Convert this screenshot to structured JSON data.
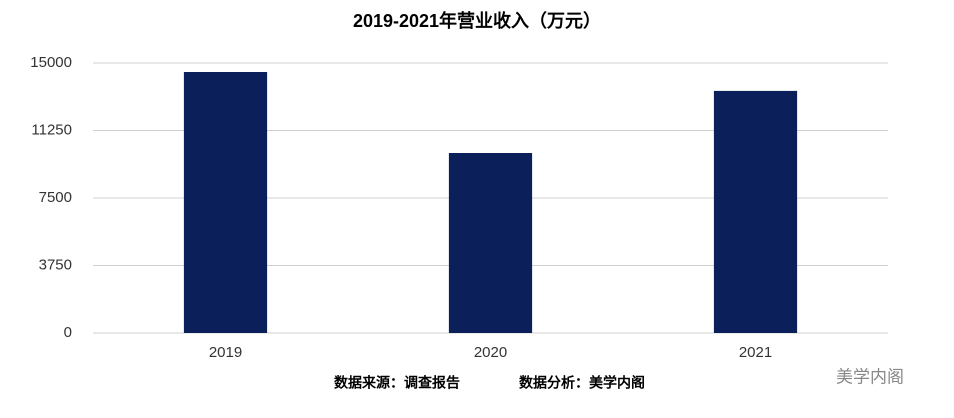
{
  "chart_data": {
    "type": "bar",
    "title": "2019-2021年营业收入（万元）",
    "categories": [
      "2019",
      "2020",
      "2021"
    ],
    "values": [
      14500,
      10000,
      13450
    ],
    "color": "#0b1f5b",
    "ylim": [
      0,
      15000
    ],
    "yticks": [
      0,
      3750,
      7500,
      11250,
      15000
    ],
    "grid": true,
    "source": "数据来源：调查报告",
    "analysis": "数据分析：美学内阁",
    "watermark": "美学内阁"
  }
}
